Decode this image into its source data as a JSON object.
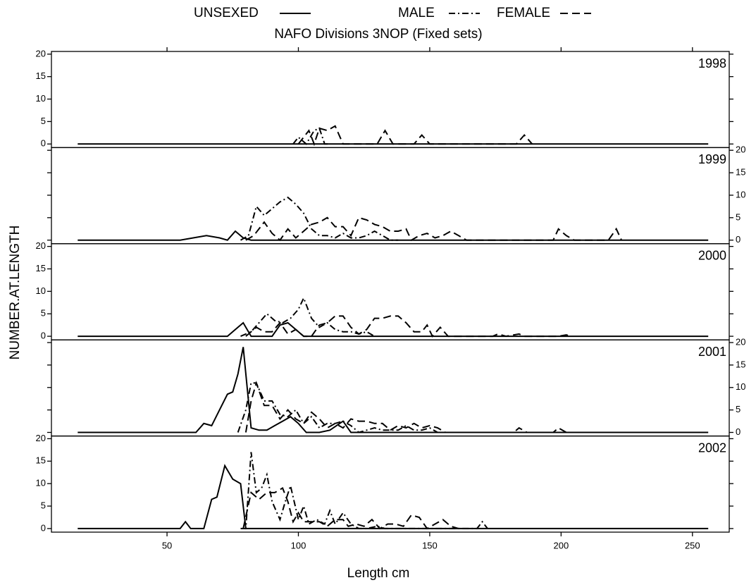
{
  "chart_data": {
    "type": "line",
    "title": "NAFO Divisions 3NOP (Fixed sets)",
    "x_label": "Length cm",
    "y_label": "NUMBER.AT.LENGTH",
    "xlim": [
      6,
      264
    ],
    "xticks": [
      50,
      100,
      150,
      200,
      250
    ],
    "ylim": [
      -0.8,
      20.6
    ],
    "yticks": [
      0,
      5,
      10,
      15,
      20
    ],
    "series": [
      {
        "name": "UNSEXED",
        "color": "#000000",
        "style": "solid"
      },
      {
        "name": "MALE",
        "color": "#000000",
        "style": "dashdot"
      },
      {
        "name": "FEMALE",
        "color": "#000000",
        "style": "dash"
      }
    ],
    "panels": [
      {
        "label": "1998",
        "ytick_side": "left",
        "lines": [
          {
            "x": [
              16,
              256
            ],
            "values": [
              0,
              0
            ]
          },
          {
            "x": [
              98,
              100,
              103,
              106,
              108,
              110,
              112
            ],
            "values": [
              0,
              1.5,
              0,
              3,
              3.5,
              0,
              0
            ]
          },
          {
            "x": [
              100,
              104,
              106,
              108,
              111,
              114,
              117,
              130,
              133,
              136,
              144,
              147,
              150,
              183,
              186,
              189
            ],
            "values": [
              0,
              3,
              0,
              3.5,
              3,
              4,
              0,
              0,
              3,
              0,
              0,
              2,
              0,
              0,
              2,
              0
            ]
          }
        ]
      },
      {
        "label": "1999",
        "ytick_side": "right",
        "lines": [
          {
            "x": [
              16,
              55,
              60,
              65,
              70,
              73,
              76,
              79,
              82,
              256
            ],
            "values": [
              0,
              0,
              0.5,
              1,
              0.5,
              0,
              2,
              0.5,
              0,
              0
            ]
          },
          {
            "x": [
              78,
              81,
              84,
              87,
              90,
              93,
              96,
              99,
              102,
              105,
              108,
              111,
              114,
              117,
              120,
              123,
              126,
              129,
              132,
              135,
              138
            ],
            "values": [
              0,
              1,
              7.5,
              5.5,
              7,
              8.5,
              9.5,
              8,
              6,
              2.5,
              1,
              1,
              0.5,
              1.5,
              0.5,
              0.5,
              1,
              2,
              1,
              0,
              0
            ]
          },
          {
            "x": [
              80,
              83,
              87,
              90,
              93,
              96,
              99,
              102,
              105,
              108,
              111,
              114,
              117,
              120,
              123,
              126,
              129,
              132,
              135,
              138,
              141,
              143,
              146,
              149,
              152,
              155,
              158,
              161,
              164,
              197,
              199,
              202,
              205,
              218,
              221,
              223
            ],
            "values": [
              0,
              1,
              4,
              1.5,
              0,
              2.5,
              0.5,
              2,
              3.5,
              4,
              5,
              3,
              3,
              1,
              5,
              4.5,
              3.5,
              3,
              2,
              2,
              2.5,
              0,
              1,
              1.5,
              0.5,
              1,
              2,
              1,
              0,
              0,
              2.5,
              1,
              0,
              0,
              2.5,
              0
            ]
          }
        ]
      },
      {
        "label": "2000",
        "ytick_side": "left",
        "lines": [
          {
            "x": [
              16,
              73,
              76,
              79,
              82,
              90,
              93,
              96,
              99,
              102,
              256
            ],
            "values": [
              0,
              0,
              1.5,
              3,
              0,
              0,
              2.5,
              3,
              1.5,
              0,
              0
            ]
          },
          {
            "x": [
              78,
              82,
              85,
              88,
              91,
              94,
              97,
              100,
              102,
              105,
              108,
              111,
              114,
              117,
              120,
              123,
              126,
              129
            ],
            "values": [
              0,
              1,
              3,
              5,
              3.5,
              3,
              4,
              6,
              8.5,
              4,
              2,
              3,
              1.5,
              1,
              1,
              0.5,
              1,
              0
            ]
          },
          {
            "x": [
              80,
              84,
              87,
              90,
              93,
              96,
              99,
              102,
              105,
              108,
              111,
              114,
              117,
              120,
              123,
              126,
              129,
              132,
              135,
              138,
              141,
              144,
              147,
              149,
              151,
              154,
              157,
              174,
              176,
              179,
              184,
              186,
              199,
              202,
              204
            ],
            "values": [
              0,
              2,
              1,
              1,
              3,
              0.5,
              1.5,
              0,
              0,
              2.5,
              3,
              4.5,
              4.5,
              2,
              0.5,
              1.5,
              4,
              4,
              4.5,
              4.5,
              3,
              1,
              1,
              2.5,
              0,
              2,
              0,
              0,
              0.5,
              0,
              0.5,
              0,
              0,
              0.3,
              0
            ]
          }
        ]
      },
      {
        "label": "2001",
        "ytick_side": "right",
        "lines": [
          {
            "x": [
              16,
              61,
              64,
              67,
              70,
              73,
              75,
              77,
              79,
              82,
              85,
              88,
              91,
              94,
              97,
              100,
              103,
              108,
              112,
              117,
              120,
              256
            ],
            "values": [
              0,
              0,
              2,
              1.5,
              5,
              8.5,
              9,
              13,
              19,
              1,
              0.5,
              0.5,
              1.5,
              2.5,
              3.5,
              2,
              0,
              0,
              0.5,
              2.5,
              0,
              0
            ]
          },
          {
            "x": [
              77,
              80,
              82,
              84,
              87,
              90,
              93,
              96,
              99,
              102,
              105,
              108,
              111,
              114,
              117,
              120,
              123,
              126,
              129,
              132,
              135,
              138,
              141,
              144,
              147,
              150,
              153
            ],
            "values": [
              0,
              5,
              11,
              11,
              7,
              7,
              4,
              3.5,
              5,
              2,
              3.5,
              1,
              2,
              2,
              2.5,
              1.5,
              0,
              0.5,
              1,
              0.5,
              0.5,
              0.5,
              1.5,
              0.5,
              0.5,
              1,
              0
            ]
          },
          {
            "x": [
              80,
              82,
              84,
              87,
              90,
              93,
              96,
              99,
              102,
              105,
              108,
              111,
              114,
              117,
              120,
              123,
              126,
              129,
              132,
              135,
              138,
              141,
              144,
              147,
              150,
              153,
              156,
              182,
              184,
              187,
              197,
              199,
              202
            ],
            "values": [
              0,
              7,
              11,
              6,
              6,
              3,
              5,
              3,
              2,
              4.5,
              3,
              1,
              2,
              1,
              3,
              2.5,
              2.5,
              2,
              2,
              0.5,
              1.5,
              1,
              2,
              1,
              1.5,
              1,
              0,
              0,
              1,
              0,
              0,
              1,
              0
            ]
          }
        ]
      },
      {
        "label": "2002",
        "ytick_side": "left",
        "lines": [
          {
            "x": [
              16,
              55,
              57,
              59,
              64,
              67,
              69,
              72,
              75,
              78,
              80,
              256
            ],
            "values": [
              0,
              0,
              1.5,
              0,
              0,
              6.5,
              7,
              14,
              11,
              10,
              0,
              0
            ]
          },
          {
            "x": [
              78,
              80,
              82,
              84,
              86,
              88,
              90,
              93,
              95,
              97,
              100,
              102,
              104,
              107,
              110,
              112,
              114,
              117,
              120,
              123,
              126,
              130,
              133,
              150,
              168,
              170,
              172
            ],
            "values": [
              0,
              0,
              17,
              8,
              9,
              12,
              6,
              2,
              6,
              9.5,
              2,
              5,
              1,
              2,
              1,
              4,
              1,
              3.5,
              1,
              0,
              0,
              0.5,
              0,
              0,
              0,
              1.5,
              0
            ]
          },
          {
            "x": [
              79,
              82,
              85,
              88,
              91,
              94,
              96,
              98,
              100,
              102,
              105,
              108,
              111,
              114,
              117,
              119,
              122,
              125,
              128,
              131,
              134,
              137,
              140,
              143,
              146,
              149,
              152,
              155,
              158,
              161
            ],
            "values": [
              0,
              8,
              6.5,
              8,
              8,
              9,
              6,
              1.5,
              3.5,
              1.5,
              1.5,
              1.5,
              0.5,
              2,
              2,
              0.5,
              1,
              0.5,
              2,
              0,
              1,
              1,
              0.5,
              3,
              2.5,
              0,
              1,
              2,
              0.5,
              0
            ]
          }
        ]
      }
    ]
  }
}
